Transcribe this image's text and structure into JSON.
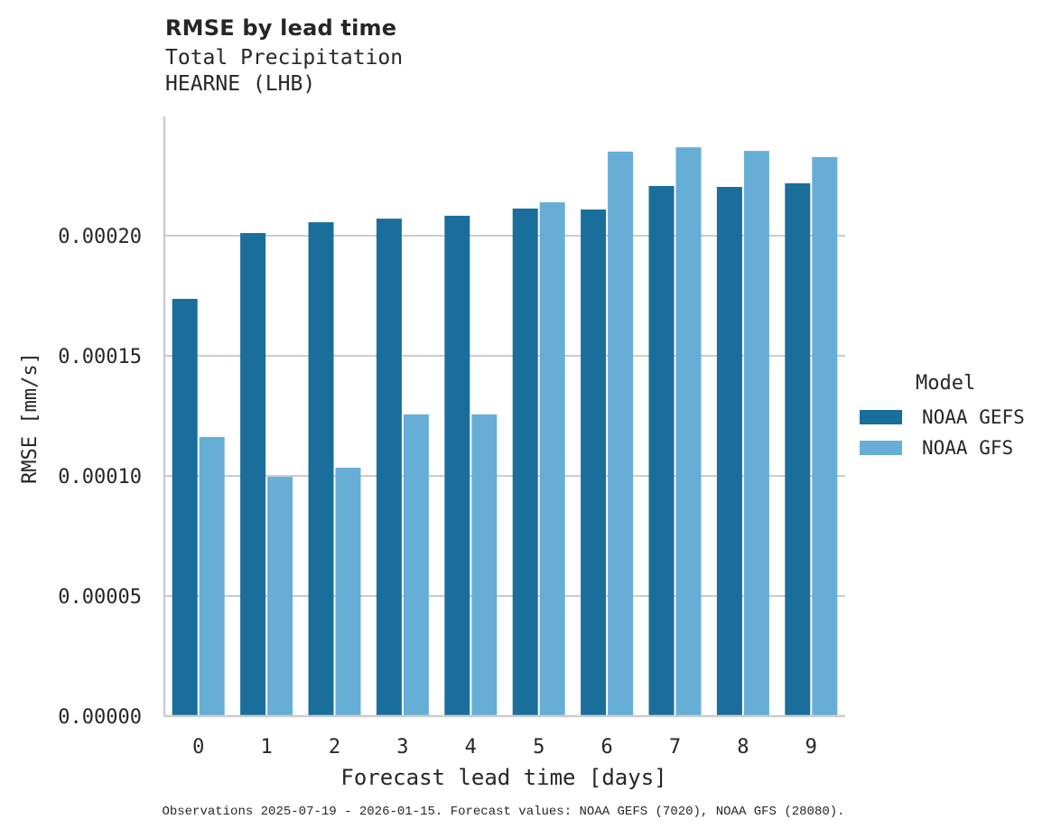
{
  "header": {
    "title": "RMSE by lead time",
    "subtitle_variable": "Total Precipitation",
    "subtitle_station": "HEARNE (LHB)"
  },
  "footnote": "Observations 2025-07-19 - 2026-01-15. Forecast values: NOAA GEFS (7020), NOAA GFS (28080).",
  "legend": {
    "title": "Model",
    "items": [
      {
        "label": "NOAA GEFS",
        "color": "#1a6e9c"
      },
      {
        "label": "NOAA GFS",
        "color": "#67aed6"
      }
    ]
  },
  "chart_data": {
    "type": "bar",
    "title": "RMSE by lead time",
    "subtitle": "Total Precipitation / HEARNE (LHB)",
    "xlabel": "Forecast lead time [days]",
    "ylabel": "RMSE [mm/s]",
    "categories": [
      "0",
      "1",
      "2",
      "3",
      "4",
      "5",
      "6",
      "7",
      "8",
      "9"
    ],
    "series": [
      {
        "name": "NOAA GEFS",
        "color": "#1a6e9c",
        "values": [
          0.0001737,
          0.0002011,
          0.0002056,
          0.0002071,
          0.0002083,
          0.0002113,
          0.0002109,
          0.0002207,
          0.0002203,
          0.0002218
        ]
      },
      {
        "name": "NOAA GFS",
        "color": "#67aed6",
        "values": [
          0.0001162,
          9.96e-05,
          0.0001034,
          0.0001256,
          0.0001256,
          0.0002139,
          0.000235,
          0.0002368,
          0.0002353,
          0.0002327
        ]
      }
    ],
    "yticks": [
      0,
      5e-05,
      0.0001,
      0.00015,
      0.0002
    ],
    "ytick_labels": [
      "0.00000",
      "0.00005",
      "0.00010",
      "0.00015",
      "0.00020"
    ],
    "ylim": [
      0,
      0.000248
    ],
    "grid": "y",
    "legend_position": "right",
    "legend_title": "Model"
  }
}
